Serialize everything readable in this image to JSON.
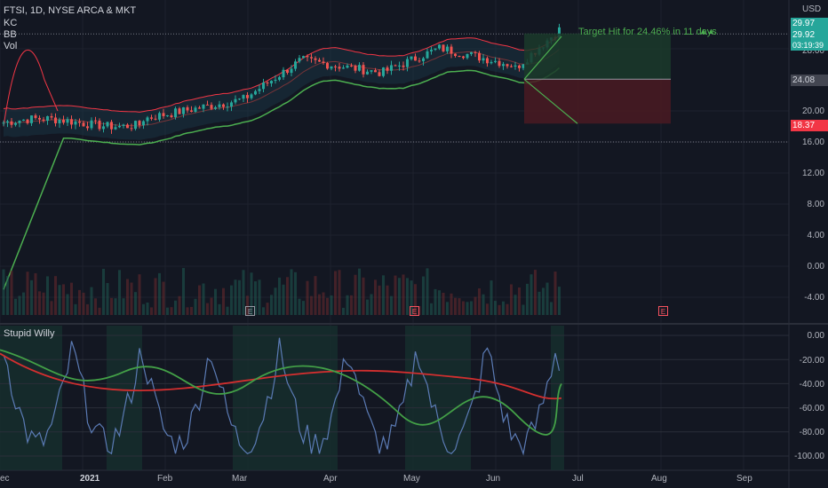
{
  "header": {
    "symbol_line": "FTSI, 1D, NYSE ARCA & MKT",
    "indicators": [
      "KC",
      "BB",
      "Vol"
    ],
    "currency": "USD"
  },
  "annotation": {
    "target_text": "Target Hit for 24.46% in 11 days"
  },
  "price_axis": {
    "ticks": [
      "28.00",
      "20.00",
      "16.00",
      "12.00",
      "8.00",
      "4.00",
      "0.00",
      "-4.00"
    ]
  },
  "price_tags": {
    "top": "29.97",
    "current": "29.92",
    "countdown": "03:19:39",
    "entry": "24.08",
    "stop": "18.37"
  },
  "oscillator": {
    "name": "Stupid Willy",
    "ticks": [
      "0.00",
      "-20.00",
      "-40.00",
      "-60.00",
      "-80.00",
      "-100.00"
    ]
  },
  "time_axis": {
    "labels": [
      "ec",
      "2021",
      "Feb",
      "Mar",
      "Apr",
      "May",
      "Jun",
      "Jul",
      "Aug",
      "Sep"
    ]
  },
  "earnings_markers": [
    "E",
    "E",
    "E"
  ],
  "colors": {
    "background": "#131722",
    "bull": "#26a69a",
    "bear": "#ef5350",
    "upper_band": "#f23645",
    "lower_band": "#4caf50",
    "target_zone": "#1b3a2a",
    "stop_zone": "#4a1a22",
    "oscillator_line": "#5b7bb5",
    "signal_red": "#d32f2f",
    "signal_green": "#43a047"
  },
  "chart_data": {
    "type": "candlestick",
    "title": "FTSI, 1D, NYSE ARCA & MKT",
    "y_axis_range": [
      -6,
      31
    ],
    "oscillator_range": [
      -105,
      5
    ],
    "trade": {
      "entry": 24.08,
      "target": 29.97,
      "stop": 18.37,
      "gain_pct": 24.46,
      "days": 11
    }
  }
}
